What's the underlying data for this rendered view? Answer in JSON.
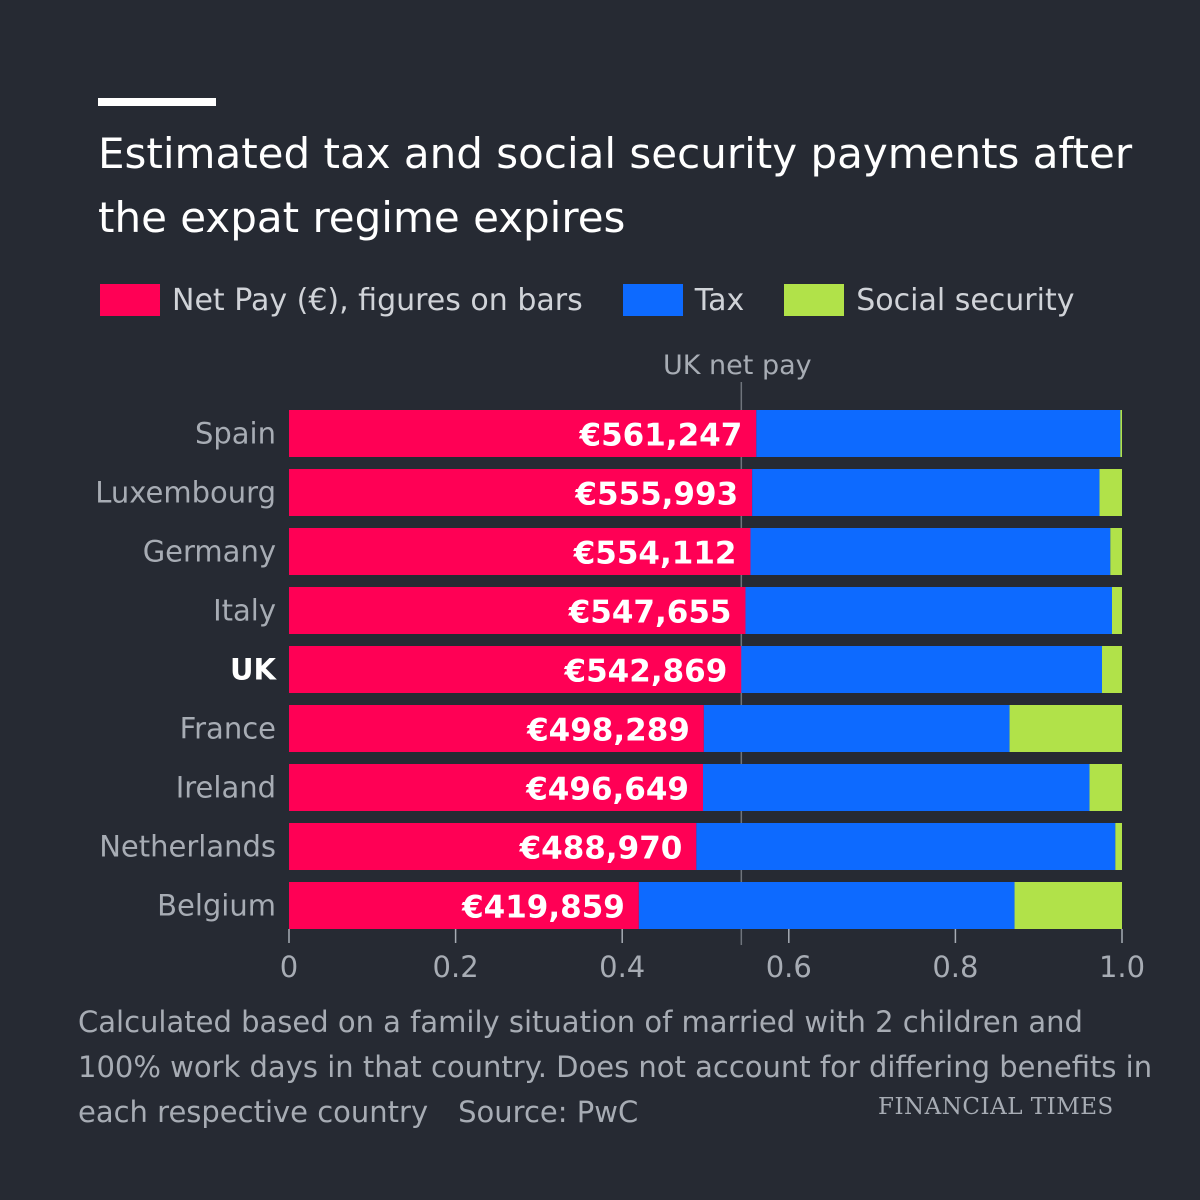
{
  "title": "Estimated tax and social security payments after the expat regime expires",
  "legend": [
    {
      "label": "Net Pay (€), figures on bars",
      "color": "#ff0055"
    },
    {
      "label": "Tax",
      "color": "#0d6aff"
    },
    {
      "label": "Social security",
      "color": "#b1e249"
    }
  ],
  "footnote": "Calculated based on a family situation of married with 2 children and 100% work days in that country. Does not account for differing benefits in each respective country",
  "source": "Source: PwC",
  "publisher": "FINANCIAL TIMES",
  "chart_data": {
    "type": "bar",
    "orientation": "horizontal",
    "stacked": true,
    "normalized": true,
    "categories": [
      "Spain",
      "Luxembourg",
      "Germany",
      "Italy",
      "UK",
      "France",
      "Ireland",
      "Netherlands",
      "Belgium"
    ],
    "highlight_category": "UK",
    "series": [
      {
        "name": "Net Pay (€), figures on bars",
        "color": "#ff0055",
        "values": [
          0.561,
          0.556,
          0.554,
          0.548,
          0.543,
          0.498,
          0.497,
          0.489,
          0.42
        ]
      },
      {
        "name": "Tax",
        "color": "#0d6aff",
        "values": [
          0.437,
          0.417,
          0.432,
          0.44,
          0.433,
          0.367,
          0.464,
          0.503,
          0.451
        ]
      },
      {
        "name": "Social security",
        "color": "#b1e249",
        "values": [
          0.002,
          0.027,
          0.014,
          0.012,
          0.024,
          0.135,
          0.039,
          0.008,
          0.129
        ]
      }
    ],
    "data_labels": [
      "€561,247",
      "€555,993",
      "€554,112",
      "€547,655",
      "€542,869",
      "€498,289",
      "€496,649",
      "€488,970",
      "€419,859"
    ],
    "xlim": [
      0,
      1.0
    ],
    "xticks": [
      0,
      0.2,
      0.4,
      0.6,
      0.8,
      1.0
    ],
    "xtick_labels": [
      "0",
      "0.2",
      "0.4",
      "0.6",
      "0.8",
      "1.0"
    ],
    "reference_line": {
      "label": "UK net pay",
      "value": 0.543
    },
    "xlabel": "",
    "ylabel": ""
  }
}
